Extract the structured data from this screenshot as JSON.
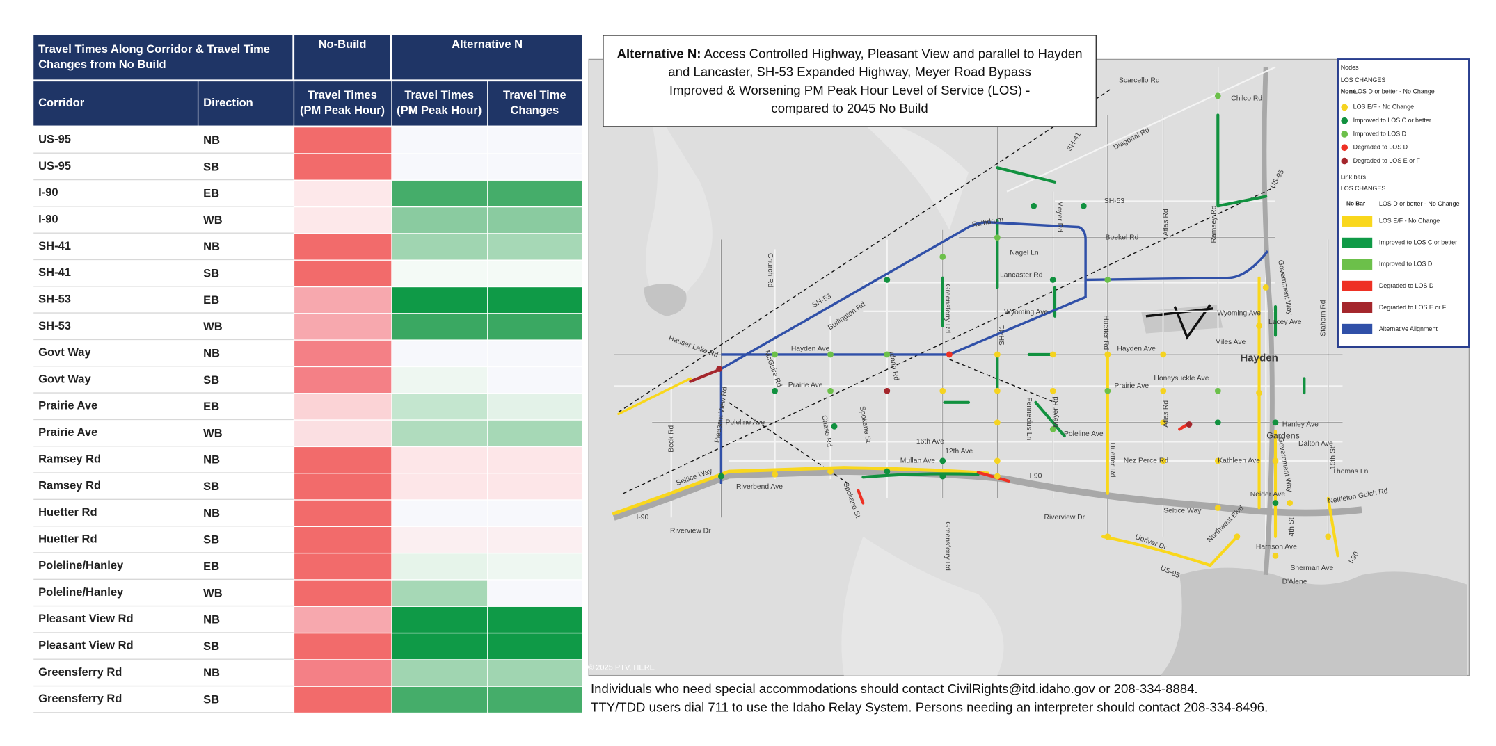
{
  "table": {
    "title_lines": [
      "Travel Times Along Corridor & Travel Time",
      "Changes from No Build"
    ],
    "no_build_header": "No-Build",
    "alt_header": "Alternative N",
    "col_corridor": "Corridor",
    "col_direction": "Direction",
    "col_headers": [
      [
        "Travel Times",
        "(PM Peak Hour)"
      ],
      [
        "Travel Times",
        "(PM Peak Hour)"
      ],
      [
        "Travel Time",
        "Changes"
      ]
    ],
    "rows": [
      {
        "corridor": "US-95",
        "direction": "NB",
        "colors": [
          "#f26b6b",
          "#f7f8fc",
          "#f7f8fc"
        ]
      },
      {
        "corridor": "US-95",
        "direction": "SB",
        "colors": [
          "#f26b6b",
          "#f7f8fc",
          "#f7f8fc"
        ]
      },
      {
        "corridor": "I-90",
        "direction": "EB",
        "colors": [
          "#fde8ea",
          "#45ad6a",
          "#45ad6a"
        ]
      },
      {
        "corridor": "I-90",
        "direction": "WB",
        "colors": [
          "#fde8ea",
          "#8acba0",
          "#8acba0"
        ]
      },
      {
        "corridor": "SH-41",
        "direction": "NB",
        "colors": [
          "#f26b6b",
          "#a0d5b1",
          "#a6d8b6"
        ]
      },
      {
        "corridor": "SH-41",
        "direction": "SB",
        "colors": [
          "#f26b6b",
          "#f4faf6",
          "#f4faf6"
        ]
      },
      {
        "corridor": "SH-53",
        "direction": "EB",
        "colors": [
          "#f7a8ae",
          "#0f9a47",
          "#0f9a47"
        ]
      },
      {
        "corridor": "SH-53",
        "direction": "WB",
        "colors": [
          "#f7a8ae",
          "#3aa862",
          "#3aa862"
        ]
      },
      {
        "corridor": "Govt Way",
        "direction": "NB",
        "colors": [
          "#f48086",
          "#f7f8fc",
          "#f7f8fc"
        ]
      },
      {
        "corridor": "Govt Way",
        "direction": "SB",
        "colors": [
          "#f48086",
          "#eef7f1",
          "#f7f8fc"
        ]
      },
      {
        "corridor": "Prairie Ave",
        "direction": "EB",
        "colors": [
          "#fbd3d6",
          "#c4e6cf",
          "#e3f2e8"
        ]
      },
      {
        "corridor": "Prairie Ave",
        "direction": "WB",
        "colors": [
          "#fbdfe2",
          "#b0dcbe",
          "#a6d8b6"
        ]
      },
      {
        "corridor": "Ramsey Rd",
        "direction": "NB",
        "colors": [
          "#f26b6b",
          "#fde6e8",
          "#fde6e8"
        ]
      },
      {
        "corridor": "Ramsey Rd",
        "direction": "SB",
        "colors": [
          "#f26b6b",
          "#fde6e8",
          "#fde6e8"
        ]
      },
      {
        "corridor": "Huetter Rd",
        "direction": "NB",
        "colors": [
          "#f26b6b",
          "#f7f8fc",
          "#f7f8fc"
        ]
      },
      {
        "corridor": "Huetter Rd",
        "direction": "SB",
        "colors": [
          "#f26b6b",
          "#fbeff1",
          "#fbeff1"
        ]
      },
      {
        "corridor": "Poleline/Hanley",
        "direction": "EB",
        "colors": [
          "#f26b6b",
          "#e6f4ea",
          "#eef7f1"
        ]
      },
      {
        "corridor": "Poleline/Hanley",
        "direction": "WB",
        "colors": [
          "#f26b6b",
          "#a6d8b6",
          "#f7f8fc"
        ]
      },
      {
        "corridor": "Pleasant View Rd",
        "direction": "NB",
        "colors": [
          "#f7a8ae",
          "#0f9a47",
          "#0f9a47"
        ]
      },
      {
        "corridor": "Pleasant View Rd",
        "direction": "SB",
        "colors": [
          "#f26b6b",
          "#0f9a47",
          "#0f9a47"
        ]
      },
      {
        "corridor": "Greensferry Rd",
        "direction": "NB",
        "colors": [
          "#f48086",
          "#a0d5b1",
          "#a0d5b1"
        ]
      },
      {
        "corridor": "Greensferry Rd",
        "direction": "SB",
        "colors": [
          "#f26b6b",
          "#45ad6a",
          "#45ad6a"
        ]
      }
    ]
  },
  "map": {
    "title_bold": "Alternative N:",
    "title_lines": [
      " Access Controlled Highway, Pleasant View and parallel to Hayden",
      "and Lancaster, SH-53 Expanded Highway, Meyer Road Bypass",
      "Improved & Worsening PM Peak Hour Level of Service (LOS) -",
      "compared to 2045 No Build"
    ],
    "labels": [
      "Scarcello Rd",
      "Chilco Rd",
      "Diagonal Rd",
      "SH-41",
      "SH-53",
      "Boekel Rd",
      "Atlas Rd",
      "Ramsey Rd",
      "US-95",
      "Rathdrum",
      "Nagel Ln",
      "Meyer Rd",
      "Lancaster Rd",
      "Church Rd",
      "SH-53",
      "Burlington Rd",
      "Greensferry Rd",
      "Wyoming Ave",
      "Wyoming Ave",
      "Hauser Lake Rd",
      "Hayden Ave",
      "Hayden Ave",
      "Miles Ave",
      "Lacey Ave",
      "Government Way",
      "Stahorn Rd",
      "SH-41",
      "McGuire Rd",
      "Idaho Rd",
      "Huetter Rd",
      "Prairie Ave",
      "Prairie Ave",
      "Honeysuckle Ave",
      "Pleasant View Rd",
      "Poleline Ave",
      "Poleline Ave",
      "Beck Rd",
      "Chase Rd",
      "Spokane St",
      "16th Ave",
      "12th Ave",
      "Fennecius Ln",
      "Meyer Rd",
      "Atlas Rd",
      "Huetter Rd",
      "Hanley Ave",
      "Dalton Ave",
      "Nez Perce Rd",
      "Kathleen Ave",
      "Mullan Ave",
      "Seltice Way",
      "Riverbend Ave",
      "I-90",
      "I-90",
      "Thomas Ln",
      "Neider Ave",
      "Spokane St",
      "Riverview Dr",
      "Riverview Dr",
      "Seltice Way",
      "Northwest Blvd",
      "Harrison Ave",
      "Nettleton Gulch Rd",
      "Greensferry Rd",
      "Upriver Dr",
      "US-95",
      "Sherman Ave",
      "D'Alene",
      "Hayden",
      "Gardens",
      "15th St",
      "I-90",
      "4th St",
      "Government Way",
      "© 2025 PTV, HERE"
    ],
    "legend": {
      "nodes_title": "Nodes",
      "nodes_subtitle": "LOS CHANGES",
      "nodes_none_key": "None",
      "nodes_none_text": "LOS D or better - No Change",
      "nodes": [
        {
          "label": "LOS E/F - No Change",
          "color": "#f5d320"
        },
        {
          "label": "Improved to LOS C or better",
          "color": "#11913f"
        },
        {
          "label": "Improved to LOS D",
          "color": "#6cc04a"
        },
        {
          "label": "Degraded to LOS D",
          "color": "#ee3124"
        },
        {
          "label": "Degraded to LOS E or F",
          "color": "#a4262c"
        }
      ],
      "bars_title": "Link bars",
      "bars_subtitle": "LOS CHANGES",
      "bars_none_key": "No Bar",
      "bars_none_text": "LOS D or better - No Change",
      "bars": [
        {
          "label": "LOS E/F - No Change",
          "color": "#f9d71c"
        },
        {
          "label": "Improved to LOS C or better",
          "color": "#0f9a47"
        },
        {
          "label": "Improved to LOS D",
          "color": "#6cc04a"
        },
        {
          "label": "Degraded to LOS D",
          "color": "#ee3124"
        },
        {
          "label": "Degraded to LOS E or F",
          "color": "#a4262c"
        },
        {
          "label": "Alternative Alignment",
          "color": "#3050a8"
        }
      ]
    }
  },
  "footer": [
    "Individuals who need special accommodations should contact CivilRights@itd.idaho.gov or 208-334-8884.",
    "TTY/TDD users dial 711 to use the Idaho Relay System. Persons needing an interpreter should contact 208-334-8496."
  ]
}
